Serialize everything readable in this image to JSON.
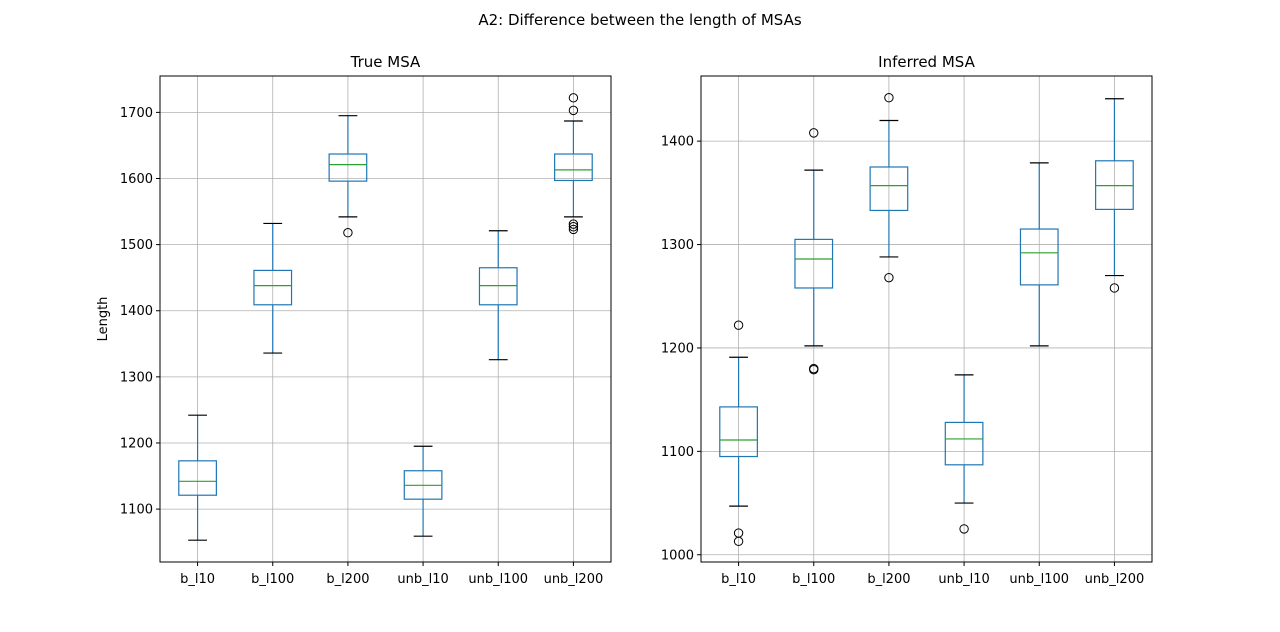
{
  "suptitle": "A2: Difference between the length of MSAs",
  "colors": {
    "box": "#1f77b4",
    "median": "#2ca02c",
    "grid": "#b0b0b0",
    "axis": "#000000"
  },
  "chart_data": [
    {
      "type": "box",
      "title": "True MSA",
      "xlabel": "",
      "ylabel": "Length",
      "ylim": [
        1020,
        1755
      ],
      "yticks": [
        1100,
        1200,
        1300,
        1400,
        1500,
        1600,
        1700
      ],
      "grid": true,
      "categories": [
        "b_l10",
        "b_l100",
        "b_l200",
        "unb_l10",
        "unb_l100",
        "unb_l200"
      ],
      "boxes": [
        {
          "whislo": 1053,
          "q1": 1121,
          "med": 1142,
          "q3": 1173,
          "whishi": 1242,
          "fliers": []
        },
        {
          "whislo": 1336,
          "q1": 1409,
          "med": 1438,
          "q3": 1461,
          "whishi": 1532,
          "fliers": []
        },
        {
          "whislo": 1542,
          "q1": 1596,
          "med": 1621,
          "q3": 1637,
          "whishi": 1695,
          "fliers": [
            1518
          ]
        },
        {
          "whislo": 1059,
          "q1": 1115,
          "med": 1136,
          "q3": 1158,
          "whishi": 1195,
          "fliers": []
        },
        {
          "whislo": 1326,
          "q1": 1409,
          "med": 1438,
          "q3": 1465,
          "whishi": 1521,
          "fliers": []
        },
        {
          "whislo": 1542,
          "q1": 1597,
          "med": 1613,
          "q3": 1637,
          "whishi": 1687,
          "fliers": [
            1703,
            1722,
            1523,
            1527,
            1531
          ]
        }
      ]
    },
    {
      "type": "box",
      "title": "Inferred MSA",
      "xlabel": "",
      "ylabel": "",
      "ylim": [
        993,
        1463
      ],
      "yticks": [
        1000,
        1100,
        1200,
        1300,
        1400
      ],
      "grid": true,
      "categories": [
        "b_l10",
        "b_l100",
        "b_l200",
        "unb_l10",
        "unb_l100",
        "unb_l200"
      ],
      "boxes": [
        {
          "whislo": 1047,
          "q1": 1095,
          "med": 1111,
          "q3": 1143,
          "whishi": 1191,
          "fliers": [
            1222,
            1021,
            1013
          ]
        },
        {
          "whislo": 1202,
          "q1": 1258,
          "med": 1286,
          "q3": 1305,
          "whishi": 1372,
          "fliers": [
            1408,
            1180,
            1179
          ]
        },
        {
          "whislo": 1288,
          "q1": 1333,
          "med": 1357,
          "q3": 1375,
          "whishi": 1420,
          "fliers": [
            1442,
            1268
          ]
        },
        {
          "whislo": 1050,
          "q1": 1087,
          "med": 1112,
          "q3": 1128,
          "whishi": 1174,
          "fliers": [
            1025
          ]
        },
        {
          "whislo": 1202,
          "q1": 1261,
          "med": 1292,
          "q3": 1315,
          "whishi": 1379,
          "fliers": []
        },
        {
          "whislo": 1270,
          "q1": 1334,
          "med": 1357,
          "q3": 1381,
          "whishi": 1441,
          "fliers": [
            1258
          ]
        }
      ]
    }
  ]
}
